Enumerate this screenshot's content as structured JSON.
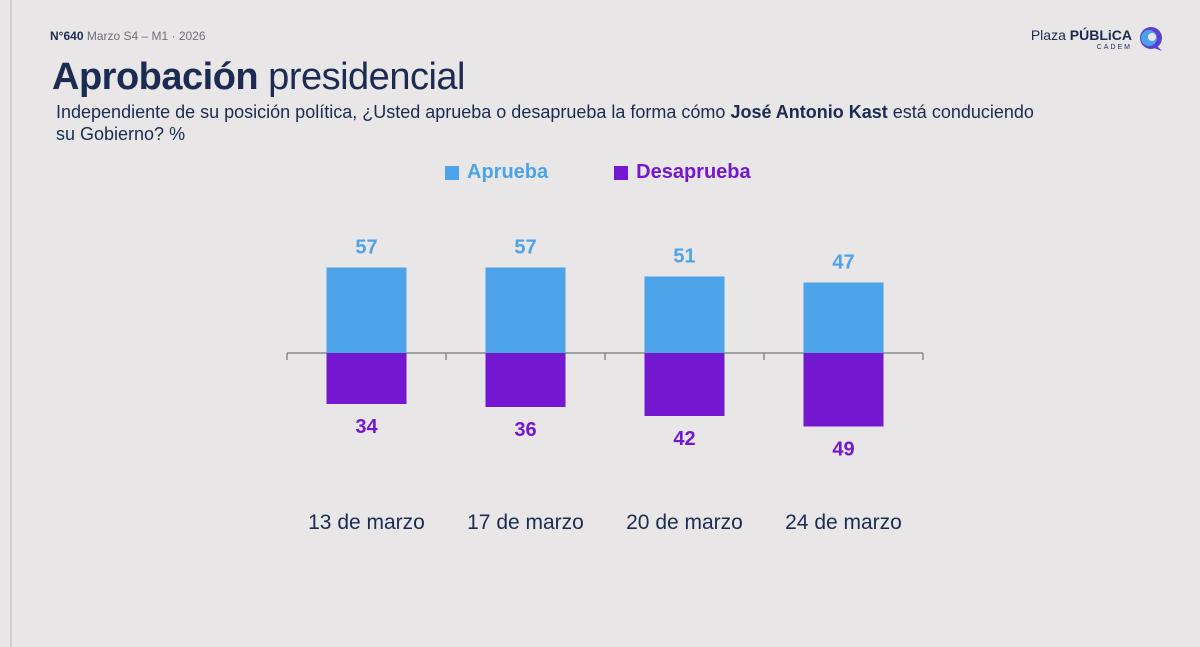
{
  "header": {
    "issue": "N°640",
    "period": "Marzo S4 – M1 · 2026"
  },
  "logo": {
    "brand_light": "Plaza ",
    "brand_bold": "PÚBLiCA",
    "sub": "CADEM"
  },
  "title": {
    "bold": "Aprobación",
    "regular": " presidencial"
  },
  "question": {
    "before": "Independiente de su posición política, ¿Usted aprueba o desaprueba la forma cómo ",
    "name": "José Antonio Kast",
    "after": " está conduciendo su Gobierno? %"
  },
  "colors": {
    "approve": "#4da3e8",
    "disapprove": "#7417d0",
    "axis": "#8a8a8a",
    "label": "#1b2b52"
  },
  "chart_data": {
    "type": "bar",
    "title": "Aprobación presidencial",
    "categories": [
      "13 de marzo",
      "17 de marzo",
      "20 de marzo",
      "24 de marzo"
    ],
    "series": [
      {
        "name": "Aprueba",
        "values": [
          57,
          57,
          51,
          47
        ]
      },
      {
        "name": "Desaprueba",
        "values": [
          34,
          36,
          42,
          49
        ]
      }
    ],
    "diverging": true,
    "legend": "top-center",
    "grid": false,
    "xlabel": "",
    "ylabel": ""
  }
}
